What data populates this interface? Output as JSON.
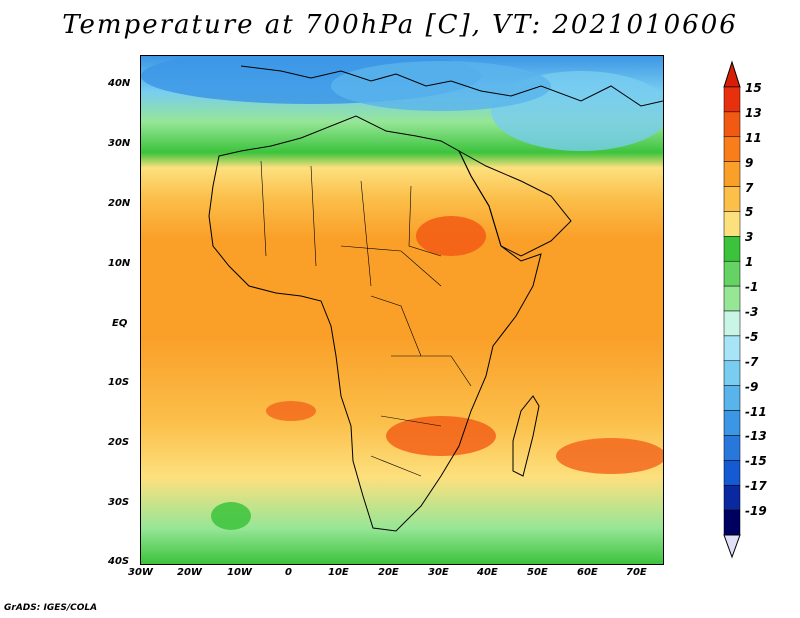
{
  "title": "Temperature at 700hPa [C], VT: 2021010606",
  "footer": "GrADS: IGES/COLA",
  "lat_labels": [
    "40N",
    "30N",
    "20N",
    "10N",
    "EQ",
    "10S",
    "20S",
    "30S",
    "40S"
  ],
  "lon_labels": [
    "30W",
    "20W",
    "10W",
    "0",
    "10E",
    "20E",
    "30E",
    "40E",
    "50E",
    "60E",
    "70E"
  ],
  "colorbar": {
    "labels": [
      "15",
      "13",
      "11",
      "9",
      "7",
      "5",
      "3",
      "1",
      "-1",
      "-3",
      "-5",
      "-7",
      "-9",
      "-11",
      "-13",
      "-15",
      "-17",
      "-19"
    ],
    "colors": [
      "#e8300f",
      "#f25a14",
      "#f87e1c",
      "#fa9f28",
      "#fbbf4a",
      "#fde07e",
      "#3cc33c",
      "#64d364",
      "#96e696",
      "#c8f5e6",
      "#a8e4f8",
      "#78cdf0",
      "#5ab4ec",
      "#3c96e6",
      "#2878dc",
      "#145ad2",
      "#0a28a0",
      "#000060"
    ],
    "top_arrow_color": "#d81e06",
    "bottom_arrow_color": "#e0e0f8"
  }
}
